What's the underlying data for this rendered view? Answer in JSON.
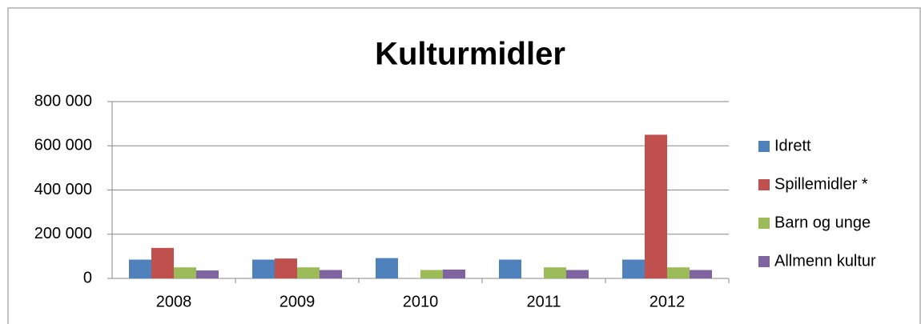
{
  "chart_data": {
    "type": "bar",
    "title": "Kulturmidler",
    "categories": [
      "2008",
      "2009",
      "2010",
      "2011",
      "2012"
    ],
    "series": [
      {
        "name": "Idrett",
        "color": "#4f81bd",
        "values": [
          85000,
          85000,
          92000,
          85000,
          85000
        ]
      },
      {
        "name": "Spillemidler *",
        "color": "#c0504d",
        "values": [
          138000,
          90000,
          0,
          0,
          650000
        ]
      },
      {
        "name": "Barn og unge",
        "color": "#9bbb59",
        "values": [
          50000,
          50000,
          38000,
          50000,
          50000
        ]
      },
      {
        "name": "Allmenn kultur",
        "color": "#8064a2",
        "values": [
          36000,
          38000,
          40000,
          38000,
          38000
        ]
      }
    ],
    "ylim": [
      0,
      800000
    ],
    "yticks": [
      0,
      {
        "value": 200000,
        "label": "200 000"
      },
      {
        "value": 400000,
        "label": "400 000"
      },
      {
        "value": 600000,
        "label": "600 000"
      },
      {
        "value": 800000,
        "label": "800 000"
      }
    ],
    "grid": true,
    "legend": "right"
  }
}
